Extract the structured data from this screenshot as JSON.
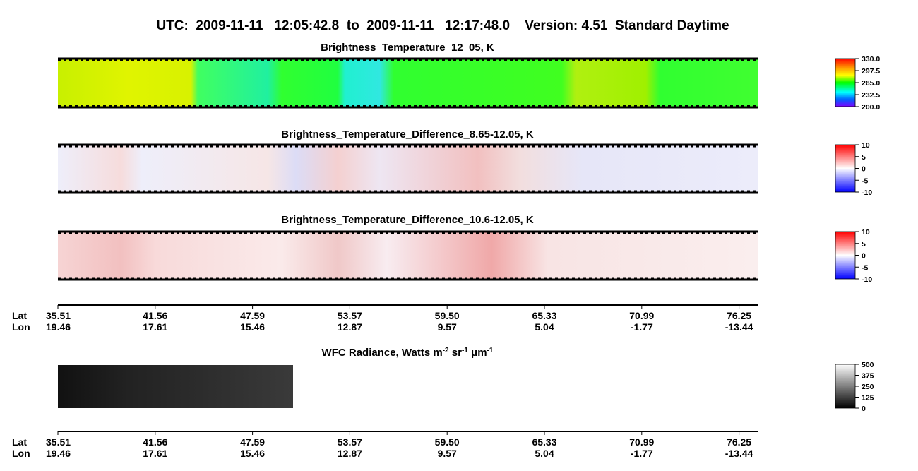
{
  "title": "UTC:  2009-11-11   12:05:42.8  to  2009-11-11   12:17:48.0    Version: 4.51  Standard Daytime",
  "panels": [
    {
      "title": "Brightness_Temperature_12_05, K",
      "colorbar": [
        "330.0",
        "297.5",
        "265.0",
        "232.5",
        "200.0"
      ]
    },
    {
      "title": "Brightness_Temperature_Difference_8.65-12.05, K",
      "colorbar": [
        "10",
        "5",
        "0",
        "-5",
        "-10"
      ]
    },
    {
      "title": "Brightness_Temperature_Difference_10.6-12.05, K",
      "colorbar": [
        "10",
        "5",
        "0",
        "-5",
        "-10"
      ]
    },
    {
      "title": {
        "base": "WFC Radiance, Watts m",
        "sup1": "-2",
        "mid1": " sr",
        "sup2": "-1",
        "mid2": " μm",
        "sup3": "-1"
      },
      "colorbar": [
        "500",
        "375",
        "250",
        "125",
        "0"
      ]
    }
  ],
  "axes": [
    {
      "lat_label": "Lat",
      "lon_label": "Lon",
      "lat": [
        "35.51",
        "41.56",
        "47.59",
        "53.57",
        "59.50",
        "65.33",
        "70.99",
        "76.25"
      ],
      "lon": [
        "19.46",
        "17.61",
        "15.46",
        "12.87",
        "9.57",
        "5.04",
        "-1.77",
        "-13.44"
      ]
    },
    {
      "lat_label": "Lat",
      "lon_label": "Lon",
      "lat": [
        "35.51",
        "41.56",
        "47.59",
        "53.57",
        "59.50",
        "65.33",
        "70.99",
        "76.25"
      ],
      "lon": [
        "19.46",
        "17.61",
        "15.46",
        "12.87",
        "9.57",
        "5.04",
        "-1.77",
        "-13.44"
      ]
    }
  ]
}
